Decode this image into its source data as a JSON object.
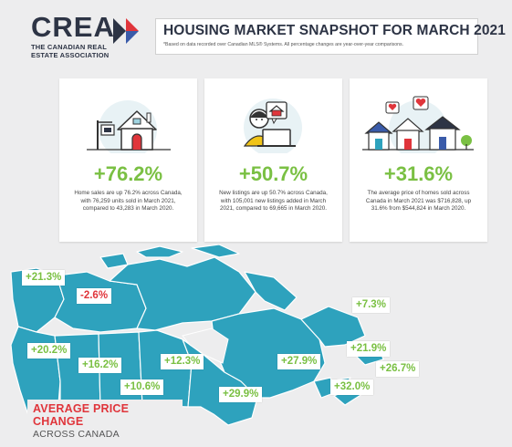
{
  "logo": {
    "word": "CREA",
    "sub_line1": "THE CANADIAN REAL",
    "sub_line2": "ESTATE ASSOCIATION",
    "colors": {
      "navy": "#2d3445",
      "red": "#e0353b",
      "blue": "#3a5ba9"
    }
  },
  "header": {
    "title": "HOUSING MARKET SNAPSHOT FOR MARCH 2021",
    "note": "*Based on data recorded over Canadian MLS® Systems. All percentage changes are year-over-year comparisons."
  },
  "cards": [
    {
      "stat": "+76.2%",
      "desc": "Home sales are up 76.2% across Canada, with 76,259 units sold in March 2021, compared to 43,283 in March 2020.",
      "icon": "house-sold-sign-icon"
    },
    {
      "stat": "+50.7%",
      "desc": "New listings are up 50.7% across Canada, with 105,001 new listings added in March 2021, compared to 69,665 in March 2020.",
      "icon": "person-laptop-icon"
    },
    {
      "stat": "+31.6%",
      "desc": "The average price of homes sold across Canada in March 2021 was $716,828, up 31.6% from $544,824 in March 2020.",
      "icon": "houses-hearts-icon"
    }
  ],
  "map": {
    "badges": [
      {
        "region": "yukon",
        "value": "+21.3%",
        "sign": "pos"
      },
      {
        "region": "northwest-territories",
        "value": "-2.6%",
        "sign": "neg"
      },
      {
        "region": "newfoundland",
        "value": "+7.3%",
        "sign": "pos"
      },
      {
        "region": "british-columbia",
        "value": "+20.2%",
        "sign": "pos"
      },
      {
        "region": "alberta",
        "value": "+16.2%",
        "sign": "pos"
      },
      {
        "region": "saskatchewan",
        "value": "+10.6%",
        "sign": "pos"
      },
      {
        "region": "manitoba",
        "value": "+12.3%",
        "sign": "pos"
      },
      {
        "region": "quebec",
        "value": "+27.9%",
        "sign": "pos"
      },
      {
        "region": "new-brunswick",
        "value": "+21.9%",
        "sign": "pos"
      },
      {
        "region": "prince-edward-island",
        "value": "+26.7%",
        "sign": "pos"
      },
      {
        "region": "ontario",
        "value": "+29.9%",
        "sign": "pos"
      },
      {
        "region": "nova-scotia",
        "value": "+32.0%",
        "sign": "pos"
      }
    ],
    "colors": {
      "land": "#2ea2bd",
      "land_light": "#4fb8cf",
      "border": "#ffffff",
      "up": "#7ac043",
      "down": "#e0353b"
    }
  },
  "legend": {
    "title": "AVERAGE PRICE CHANGE",
    "subtitle": "ACROSS CANADA"
  }
}
